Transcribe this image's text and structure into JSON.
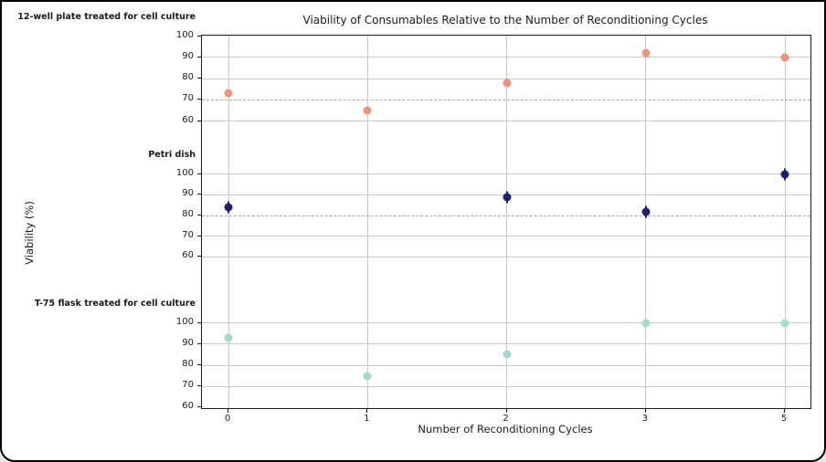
{
  "window": {
    "background": "#ffffff",
    "border_color": "#000000"
  },
  "chart_data": {
    "type": "scatter",
    "title": "Viability of Consumables Relative to the Number of Reconditioning Cycles",
    "xlabel": "Number of Reconditioning Cycles",
    "ylabel": "Viability (%)",
    "x_scale": "categorical",
    "x_ticks": [
      "0",
      "1",
      "2",
      "3",
      "5"
    ],
    "y_ticks": [
      100,
      90,
      80,
      70,
      60
    ],
    "ylim_per_facet": [
      60,
      100
    ],
    "grid": true,
    "legend": "none",
    "facets": [
      {
        "label": "12-well plate treated for cell culture",
        "color": "#ee9478",
        "points": [
          {
            "x": "0",
            "y": 73
          },
          {
            "x": "1",
            "y": 65
          },
          {
            "x": "2",
            "y": 78
          },
          {
            "x": "3",
            "y": 92
          },
          {
            "x": "5",
            "y": 90
          }
        ],
        "reference_line": 70,
        "error_bars": false
      },
      {
        "label": "Petri dish",
        "color": "#1e1e78",
        "points": [
          {
            "x": "0",
            "y": 84
          },
          {
            "x": "2",
            "y": 89
          },
          {
            "x": "3",
            "y": 82
          },
          {
            "x": "5",
            "y": 100
          }
        ],
        "reference_line": 80,
        "error_bars": true
      },
      {
        "label": "T-75 flask treated for cell culture",
        "color": "#9fdccb",
        "points": [
          {
            "x": "0",
            "y": 93
          },
          {
            "x": "1",
            "y": 75
          },
          {
            "x": "2",
            "y": 85
          },
          {
            "x": "3",
            "y": 100
          },
          {
            "x": "5",
            "y": 100
          }
        ],
        "reference_line": null,
        "error_bars": false
      }
    ],
    "colors": {
      "grid": "#c9c9c9",
      "reference_dash": "#a8a8a8",
      "spine": "#1a1a1a",
      "text": "#1a1a1a"
    }
  }
}
